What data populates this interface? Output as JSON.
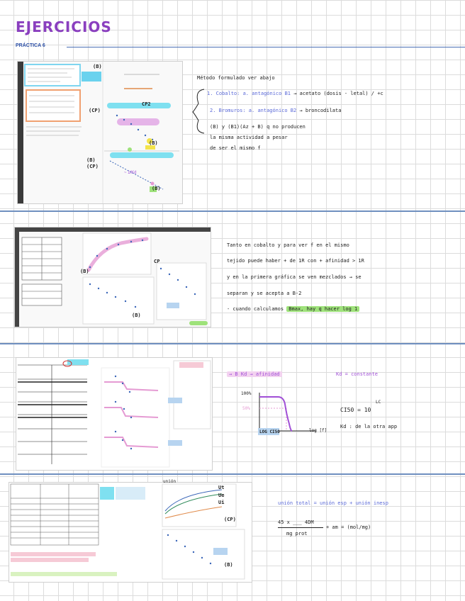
{
  "header": {
    "title": "EJERCICIOS",
    "subtitle": "PRÁCTICA 6"
  },
  "section1": {
    "notes": {
      "line1": "Método formulado ver abajo",
      "line2a": "1. Cobalto:",
      "line2b": "a. antagónico B1",
      "line2c": "→ acetato (dosis - letal) / +c",
      "line3a": "2. Bromuros:",
      "line3b": "a. antagónico B2",
      "line3c": "→ broncodilata",
      "line4": "(B) y (B1)(Az + B) q no producen",
      "line5": "la misma actividad a pesar",
      "line6": "de ser el mismo f"
    },
    "labels": {
      "b1": "(B)",
      "cp1": "(CP)",
      "cp2": "CP2",
      "b2": "(B)",
      "b3": "(B)",
      "cp3": "(CP)",
      "b4": "(B)"
    }
  },
  "section2": {
    "notes": {
      "line1": "Tanto en cobalto y para ver f en el mismo",
      "line2": "tejido puede haber + de 1R con + afinidad > 1R",
      "line3": "y en la primera gráfica se ven mezclados → se",
      "line4": "separan y se acepta a B-2",
      "line5a": "- cuando calculamos",
      "line5b": "Bmax, hay q hacer log 1"
    },
    "labels": {
      "cp": "CP",
      "b1": "(B)",
      "b2": "(B)"
    }
  },
  "section3": {
    "notes": {
      "line1": "→ B Kd → afinidad",
      "line2": "Kd = constante",
      "ylabel": "100%",
      "y50": "50%",
      "xlabel": "log [f]",
      "logcis": "LOG CI50",
      "formula": "CI50 = 10",
      "exponent": "LC",
      "kd_note": "Kd : de la otra app"
    }
  },
  "section4": {
    "notes": {
      "line1": "unión total = unión esp + unión inesp",
      "numerator": "45 x ___ 4DM",
      "denominator": "mg prot",
      "formula_rest": "+ am = (mol/mg)"
    },
    "labels": {
      "ut": "Ut",
      "ue": "Ue",
      "ui": "Ui",
      "cp": "(CP)",
      "b": "(B)",
      "graph_label": "unión"
    }
  },
  "colors": {
    "title": "#8a3fbf",
    "accent_blue": "#5b6ad8",
    "highlight_green": "#9ee27a",
    "divider": "#6f8fbf",
    "pink": "#e59bd3",
    "cyan": "#7fe0f0"
  }
}
